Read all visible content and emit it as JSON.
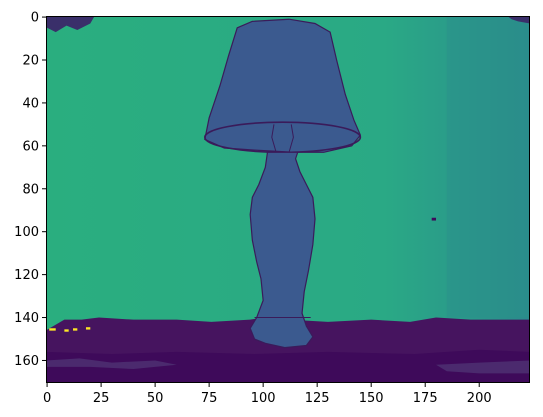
{
  "chart_data": {
    "type": "heatmap",
    "title": "",
    "xlabel": "",
    "ylabel": "",
    "colormap": "viridis",
    "xlim": [
      -0.5,
      223.5
    ],
    "ylim": [
      170.5,
      -0.5
    ],
    "x_ticks": [
      0,
      25,
      50,
      75,
      100,
      125,
      150,
      175,
      200
    ],
    "y_ticks": [
      0,
      20,
      40,
      60,
      80,
      100,
      120,
      140,
      160
    ],
    "x_tick_labels": [
      "0",
      "25",
      "50",
      "75",
      "100",
      "125",
      "150",
      "175",
      "200"
    ],
    "y_tick_labels": [
      "0",
      "20",
      "40",
      "60",
      "80",
      "100",
      "120",
      "140",
      "160"
    ],
    "image_shape": [
      171,
      224
    ],
    "grid": false,
    "colors": {
      "background_teal": "#2aae7f",
      "background_right": "#2a8f8a",
      "lamp_body": "#3b5a8f",
      "lamp_outline": "#3a1b5a",
      "floor_dark": "#3e0a5a",
      "floor_mid": "#46145f",
      "highlight_yellow": "#fde725"
    }
  }
}
